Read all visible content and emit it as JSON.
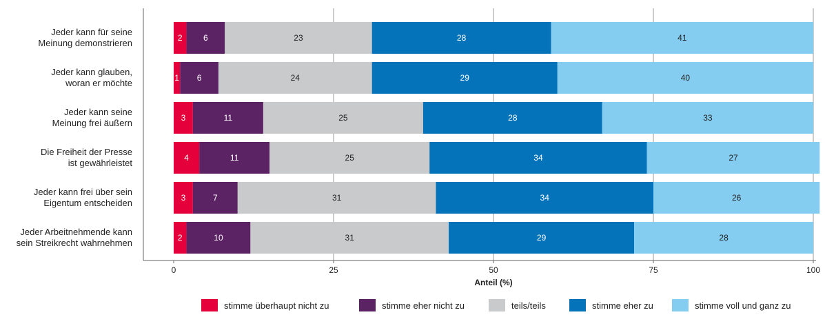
{
  "chart_data": {
    "type": "bar",
    "orientation": "horizontal",
    "stacked": true,
    "xlabel": "Anteil (%)",
    "xlim": [
      0,
      100
    ],
    "xticks": [
      0,
      25,
      50,
      75,
      100
    ],
    "grid": true,
    "legend_position": "bottom",
    "categories": [
      [
        "Jeder kann für seine",
        "Meinung demonstrieren"
      ],
      [
        "Jeder kann glauben,",
        "woran er möchte"
      ],
      [
        "Jeder kann seine",
        "Meinung frei äußern"
      ],
      [
        "Die Freiheit der Presse",
        "ist gewährleistet"
      ],
      [
        "Jeder kann frei über sein",
        "Eigentum entscheiden"
      ],
      [
        "Jeder Arbeitnehmende kann",
        "sein Streikrecht wahrnehmen"
      ]
    ],
    "series": [
      {
        "name": "stimme überhaupt nicht zu",
        "color": "#e5003b",
        "label_color": "#ffffff",
        "values": [
          2,
          1,
          3,
          4,
          3,
          2
        ]
      },
      {
        "name": "stimme eher nicht zu",
        "color": "#5b2264",
        "label_color": "#ffffff",
        "values": [
          6,
          6,
          11,
          11,
          7,
          10
        ]
      },
      {
        "name": "teils/teils",
        "color": "#c8cacb",
        "label_color": "#222222",
        "values": [
          23,
          24,
          25,
          25,
          31,
          31
        ]
      },
      {
        "name": "stimme eher zu",
        "color": "#0573b9",
        "label_color": "#ffffff",
        "values": [
          28,
          29,
          28,
          34,
          34,
          29
        ]
      },
      {
        "name": "stimme voll und ganz zu",
        "color": "#85cdf0",
        "label_color": "#222222",
        "values": [
          41,
          40,
          33,
          27,
          26,
          28
        ]
      }
    ]
  }
}
